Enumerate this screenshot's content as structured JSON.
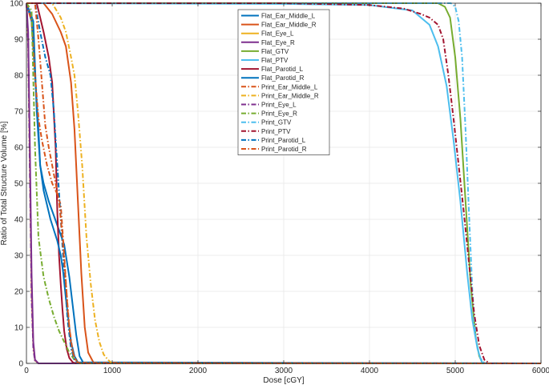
{
  "chart_data": {
    "type": "line",
    "title": "",
    "xlabel": "Dose [cGY]",
    "ylabel": "Ratio of Total Structure Volume [%]",
    "xlim": [
      0,
      6000
    ],
    "ylim": [
      0,
      100
    ],
    "xticks": [
      "0",
      "1000",
      "2000",
      "3000",
      "4000",
      "5000",
      "6000"
    ],
    "yticks": [
      "0",
      "10",
      "20",
      "30",
      "40",
      "50",
      "60",
      "70",
      "80",
      "90",
      "100"
    ],
    "grid": true,
    "legend_placement": "top-center",
    "series": [
      {
        "name": "Flat_Ear_Middle_L",
        "color": "#0072BD",
        "dash": "solid",
        "x": [
          0,
          80,
          120,
          160,
          200,
          260,
          320,
          380,
          440,
          500,
          540,
          580,
          620,
          660,
          700,
          6000
        ],
        "y": [
          100,
          95,
          70,
          55,
          50,
          45,
          41,
          37,
          33,
          24,
          16,
          8,
          2,
          0.3,
          0,
          0
        ]
      },
      {
        "name": "Flat_Ear_Middle_R",
        "color": "#D95319",
        "dash": "solid",
        "x": [
          0,
          200,
          300,
          400,
          460,
          520,
          560,
          600,
          640,
          680,
          720,
          780,
          820,
          6000
        ],
        "y": [
          100,
          100,
          97,
          92,
          88,
          78,
          65,
          45,
          25,
          10,
          3,
          0.3,
          0,
          0
        ]
      },
      {
        "name": "Flat_Eye_L",
        "color": "#EDB120",
        "dash": "solid",
        "x": [
          0,
          20,
          40,
          60,
          80,
          100,
          140,
          6000
        ],
        "y": [
          100,
          90,
          55,
          20,
          5,
          0.8,
          0,
          0
        ]
      },
      {
        "name": "Flat_Eye_R",
        "color": "#7E2F8E",
        "dash": "solid",
        "x": [
          0,
          20,
          40,
          60,
          80,
          100,
          140,
          6000
        ],
        "y": [
          100,
          92,
          60,
          25,
          6,
          1,
          0,
          0
        ]
      },
      {
        "name": "Flat_GTV",
        "color": "#77AC30",
        "dash": "solid",
        "x": [
          0,
          4600,
          4800,
          4880,
          4940,
          5000,
          5060,
          5120,
          5180,
          5240,
          5280,
          5320,
          6000
        ],
        "y": [
          100,
          100,
          100,
          99,
          96,
          85,
          68,
          45,
          22,
          7,
          2,
          0,
          0
        ]
      },
      {
        "name": "Flat_PTV",
        "color": "#4DBEEE",
        "dash": "solid",
        "x": [
          0,
          3000,
          4000,
          4500,
          4700,
          4800,
          4900,
          4980,
          5060,
          5140,
          5200,
          5260,
          5300,
          5320,
          6000
        ],
        "y": [
          100,
          99.8,
          99.5,
          98,
          94,
          88,
          77,
          62,
          45,
          25,
          12,
          4,
          1,
          0,
          0
        ]
      },
      {
        "name": "Flat_Parotid_L",
        "color": "#A2142F",
        "dash": "solid",
        "x": [
          0,
          120,
          200,
          260,
          300,
          340,
          360,
          380,
          400,
          420,
          440,
          470,
          500,
          540,
          580,
          6000
        ],
        "y": [
          100,
          100,
          92,
          85,
          78,
          60,
          42,
          30,
          22,
          15,
          9,
          4,
          1.5,
          0.3,
          0,
          0
        ]
      },
      {
        "name": "Flat_Parotid_R",
        "color": "#0072BD",
        "dash": "solid",
        "x": [
          0,
          60,
          100,
          140,
          160,
          200,
          240,
          280,
          320,
          360,
          400,
          430,
          460,
          490,
          520,
          560,
          600,
          6000
        ],
        "y": [
          100,
          95,
          80,
          65,
          55,
          48,
          44,
          40,
          37,
          34,
          30,
          25,
          18,
          12,
          6,
          2,
          0.3,
          0
        ]
      },
      {
        "name": "Print_Ear_Middle_L",
        "color": "#D95319",
        "dash": "dashdot",
        "x": [
          0,
          60,
          100,
          140,
          180,
          240,
          300,
          360,
          400,
          440,
          480,
          520,
          560,
          600,
          6000
        ],
        "y": [
          100,
          95,
          80,
          68,
          62,
          55,
          50,
          47,
          44,
          30,
          15,
          5,
          1.5,
          0.2,
          0
        ]
      },
      {
        "name": "Print_Ear_Middle_R",
        "color": "#EDB120",
        "dash": "dashdot",
        "x": [
          0,
          300,
          400,
          460,
          520,
          560,
          600,
          650,
          700,
          750,
          800,
          850,
          900,
          950,
          1000,
          6000
        ],
        "y": [
          100,
          100,
          96,
          92,
          85,
          80,
          70,
          55,
          35,
          22,
          12,
          6,
          2.5,
          1,
          0,
          0
        ]
      },
      {
        "name": "Print_Eye_L",
        "color": "#7E2F8E",
        "dash": "dashdot",
        "x": [
          0,
          20,
          40,
          60,
          80,
          100,
          140,
          6000
        ],
        "y": [
          100,
          88,
          52,
          18,
          4,
          0.6,
          0,
          0
        ]
      },
      {
        "name": "Print_Eye_R",
        "color": "#77AC30",
        "dash": "dashdot",
        "x": [
          0,
          60,
          100,
          140,
          200,
          260,
          320,
          380,
          440,
          500,
          560,
          600,
          620,
          6000
        ],
        "y": [
          100,
          98,
          60,
          35,
          24,
          18,
          13,
          9,
          6,
          3,
          1,
          0.3,
          0,
          0
        ]
      },
      {
        "name": "Print_GTV",
        "color": "#4DBEEE",
        "dash": "dashdot",
        "x": [
          0,
          4800,
          4950,
          5000,
          5040,
          5080,
          5120,
          5160,
          5200,
          5240,
          5280,
          5320,
          5360,
          6000
        ],
        "y": [
          100,
          100,
          100,
          99,
          95,
          85,
          65,
          42,
          20,
          7,
          2,
          0.5,
          0,
          0
        ]
      },
      {
        "name": "Print_PTV",
        "color": "#A2142F",
        "dash": "dashdot",
        "x": [
          0,
          3000,
          4000,
          4400,
          4600,
          4700,
          4800,
          4860,
          4920,
          4980,
          5040,
          5100,
          5160,
          5220,
          5280,
          5340,
          5400,
          6000
        ],
        "y": [
          100,
          100,
          99.5,
          98.5,
          97,
          96,
          94,
          90,
          80,
          68,
          55,
          42,
          28,
          14,
          5,
          1,
          0,
          0
        ]
      },
      {
        "name": "Print_Parotid_L",
        "color": "#0072BD",
        "dash": "dashdot",
        "x": [
          0,
          100,
          160,
          220,
          280,
          320,
          360,
          400,
          440,
          480,
          520,
          560,
          600,
          6000
        ],
        "y": [
          100,
          100,
          92,
          85,
          80,
          70,
          55,
          40,
          25,
          12,
          4,
          1,
          0,
          0
        ]
      },
      {
        "name": "Print_Parotid_R",
        "color": "#D95319",
        "dash": "dashdot",
        "x": [
          0,
          100,
          140,
          180,
          220,
          260,
          300,
          340,
          380,
          420,
          460,
          500,
          540,
          580,
          620,
          6000
        ],
        "y": [
          100,
          100,
          90,
          78,
          66,
          60,
          55,
          50,
          45,
          35,
          22,
          10,
          3,
          0.5,
          0,
          0
        ]
      }
    ]
  }
}
